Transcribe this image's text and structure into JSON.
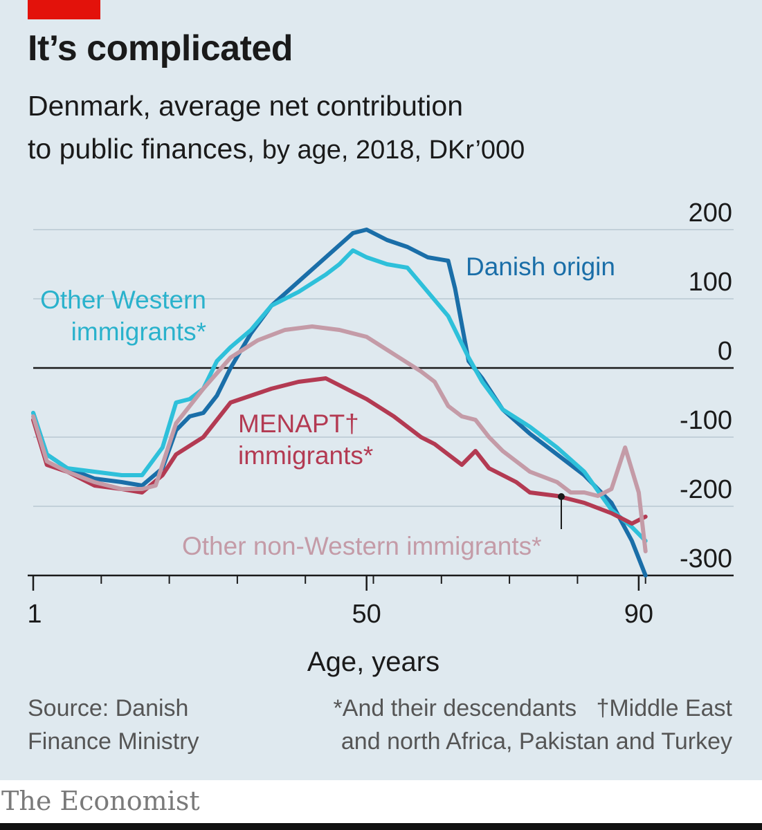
{
  "header": {
    "title": "It’s complicated",
    "subtitle_line1": "Denmark, average net contribution",
    "subtitle_line2a": "to public finances,",
    "subtitle_line2b": " by age, 2018, DKr’000"
  },
  "footer": {
    "source_line1": "Source: Danish",
    "source_line2": "Finance Ministry",
    "note_line1": "*And their descendants   †Middle East",
    "note_line2": "and north Africa, Pakistan and Turkey",
    "brand": "The Economist"
  },
  "colors": {
    "background": "#dfe9ef",
    "danish": "#1a6ea8",
    "western": "#2ec0da",
    "menapt": "#b33a52",
    "other_nonwestern": "#c49ba7"
  },
  "chart_data": {
    "type": "line",
    "title": "It’s complicated",
    "xlabel": "Age, years",
    "ylabel": "DKr’000",
    "xlim": [
      1,
      100
    ],
    "ylim": [
      -300,
      200
    ],
    "xticks": [
      1,
      50,
      90
    ],
    "yticks": [
      200,
      100,
      0,
      -100,
      -200,
      -300
    ],
    "series": [
      {
        "name": "Danish origin",
        "label_lines": [
          "Danish origin"
        ],
        "color": "#1a6ea8",
        "x": [
          1,
          3,
          6,
          10,
          14,
          17,
          20,
          22,
          24,
          26,
          28,
          30,
          33,
          36,
          40,
          44,
          48,
          50,
          53,
          56,
          59,
          62,
          63,
          65,
          67,
          70,
          74,
          78,
          82,
          86,
          89,
          91
        ],
        "y": [
          -65,
          -125,
          -145,
          -160,
          -165,
          -170,
          -145,
          -90,
          -70,
          -65,
          -40,
          0,
          50,
          90,
          125,
          160,
          195,
          200,
          185,
          175,
          160,
          155,
          115,
          10,
          -15,
          -60,
          -95,
          -125,
          -155,
          -195,
          -250,
          -300
        ]
      },
      {
        "name": "Other Western immigrants*",
        "label_lines": [
          "Other Western",
          "immigrants*"
        ],
        "color": "#2ec0da",
        "x": [
          1,
          3,
          6,
          10,
          14,
          17,
          20,
          22,
          24,
          26,
          28,
          30,
          33,
          36,
          40,
          44,
          46,
          48,
          50,
          53,
          56,
          59,
          62,
          65,
          67,
          70,
          74,
          78,
          82,
          86,
          89,
          91
        ],
        "y": [
          -65,
          -125,
          -145,
          -150,
          -155,
          -155,
          -115,
          -50,
          -45,
          -30,
          10,
          30,
          55,
          90,
          110,
          135,
          150,
          170,
          160,
          150,
          145,
          110,
          75,
          15,
          -20,
          -60,
          -85,
          -115,
          -150,
          -205,
          -230,
          -250
        ]
      },
      {
        "name": "MENAPT† immigrants*",
        "label_lines": [
          "MENAPT†",
          "immigrants*"
        ],
        "color": "#b33a52",
        "x": [
          1,
          3,
          6,
          10,
          14,
          17,
          20,
          22,
          26,
          30,
          33,
          36,
          40,
          44,
          46,
          50,
          54,
          58,
          60,
          62,
          64,
          66,
          68,
          70,
          72,
          74,
          78,
          82,
          86,
          89,
          91
        ],
        "y": [
          -75,
          -140,
          -150,
          -170,
          -175,
          -180,
          -155,
          -125,
          -100,
          -50,
          -40,
          -30,
          -20,
          -15,
          -25,
          -45,
          -70,
          -100,
          -110,
          -125,
          -140,
          -120,
          -145,
          -155,
          -165,
          -180,
          -185,
          -195,
          -210,
          -225,
          -215
        ]
      },
      {
        "name": "Other non-Western immigrants*",
        "label_lines": [
          "Other non-Western immigrants*"
        ],
        "color": "#c49ba7",
        "x": [
          1,
          3,
          6,
          10,
          14,
          17,
          19,
          22,
          26,
          30,
          34,
          38,
          42,
          46,
          50,
          54,
          58,
          60,
          62,
          64,
          66,
          68,
          70,
          74,
          78,
          80,
          82,
          84,
          86,
          88,
          90,
          91
        ],
        "y": [
          -70,
          -135,
          -150,
          -165,
          -175,
          -175,
          -170,
          -80,
          -30,
          15,
          40,
          55,
          60,
          55,
          45,
          20,
          -5,
          -20,
          -55,
          -70,
          -75,
          -100,
          -120,
          -150,
          -165,
          -180,
          -180,
          -185,
          -175,
          -115,
          -180,
          -265
        ]
      }
    ]
  }
}
